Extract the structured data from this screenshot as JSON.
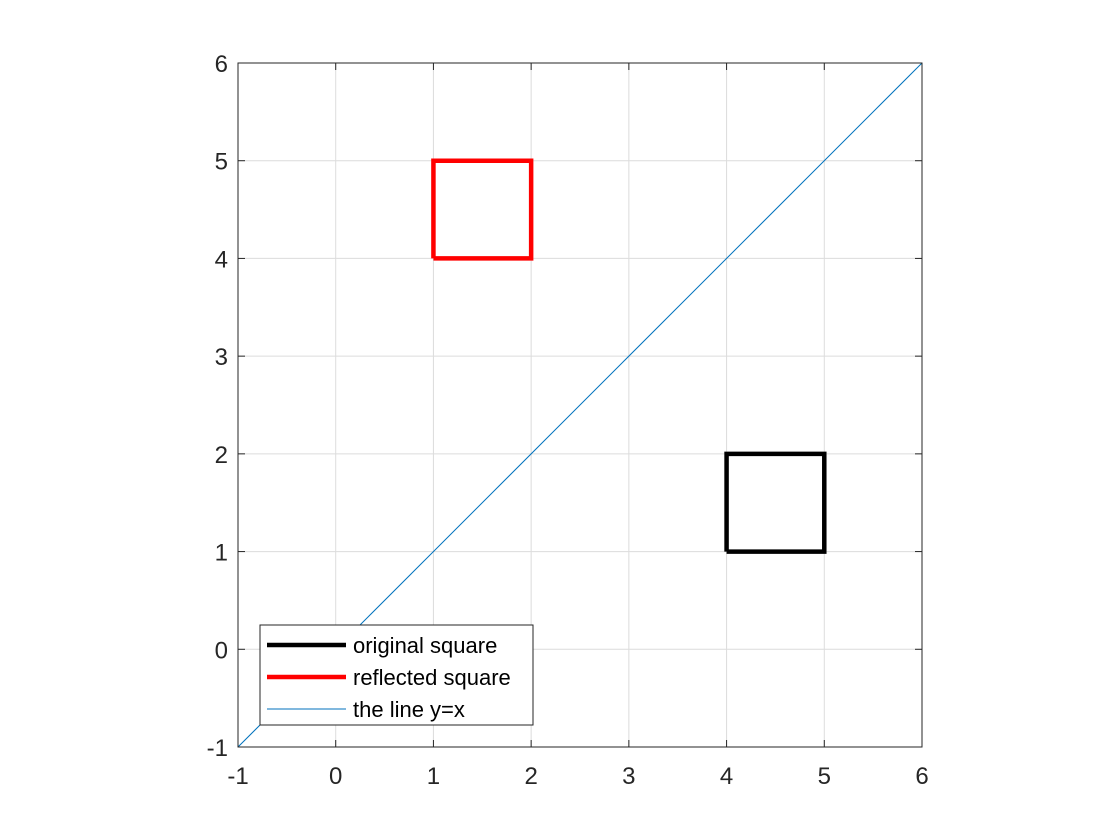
{
  "chart_data": {
    "type": "line",
    "title": "",
    "xlabel": "",
    "ylabel": "",
    "xlim": [
      -1,
      6
    ],
    "ylim": [
      -1,
      6
    ],
    "xticks": [
      "-1",
      "0",
      "1",
      "2",
      "3",
      "4",
      "5",
      "6"
    ],
    "yticks": [
      "-1",
      "0",
      "1",
      "2",
      "3",
      "4",
      "5",
      "6"
    ],
    "grid": true,
    "legend_position": "bottom-left",
    "series": [
      {
        "name": "original square",
        "color": "#000000",
        "x": [
          4,
          5,
          5,
          4,
          4
        ],
        "y": [
          1,
          1,
          2,
          2,
          1
        ]
      },
      {
        "name": "reflected square",
        "color": "#ff0000",
        "x": [
          1,
          1,
          2,
          2,
          1
        ],
        "y": [
          4,
          5,
          5,
          4,
          4
        ]
      },
      {
        "name": "the line y=x",
        "color": "#0072bd",
        "x": [
          -1,
          6
        ],
        "y": [
          -1,
          6
        ]
      }
    ]
  }
}
